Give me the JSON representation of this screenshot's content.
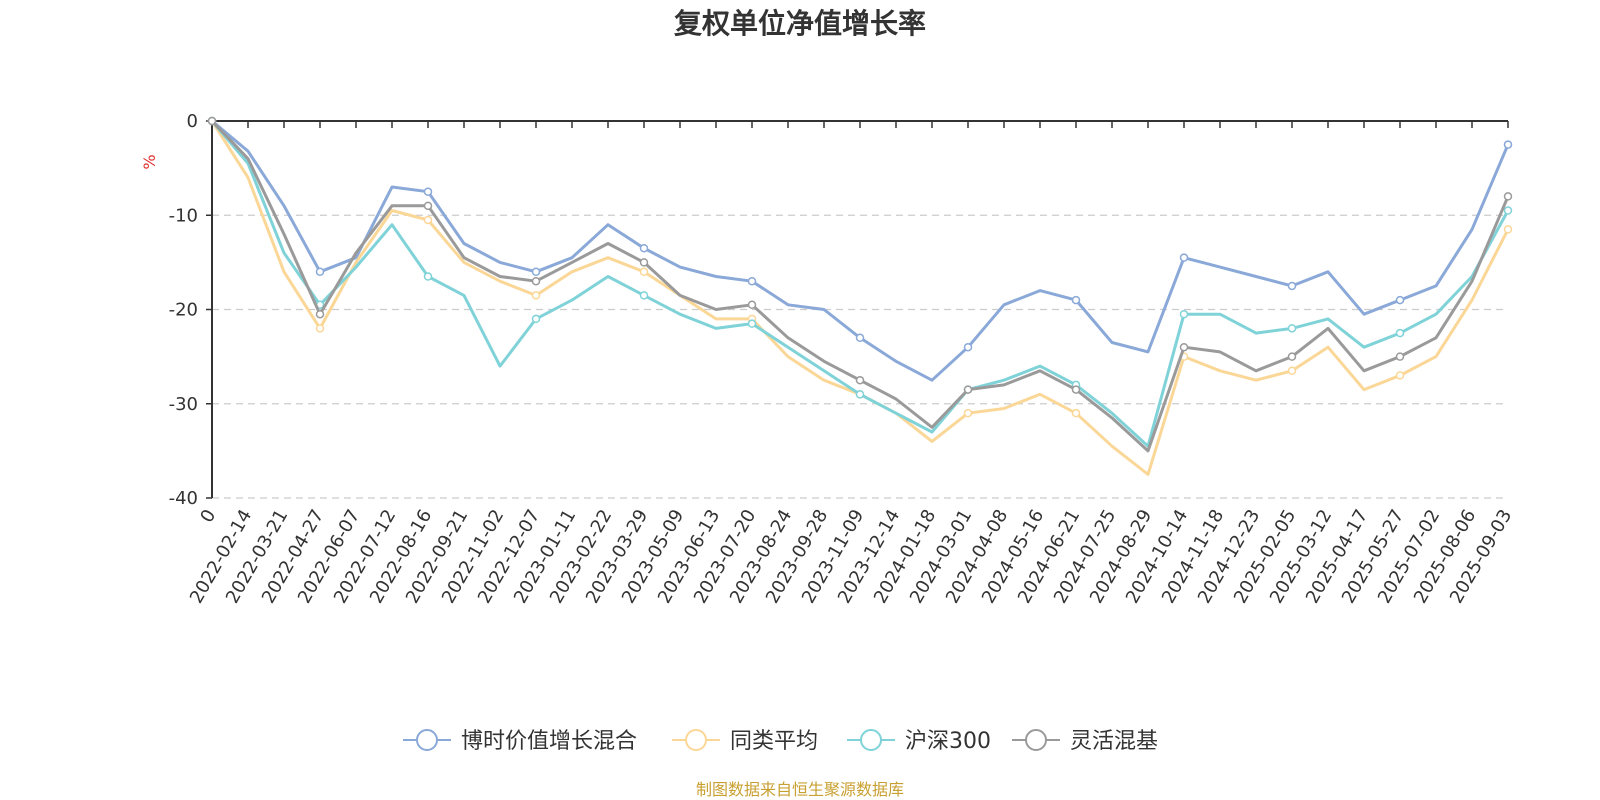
{
  "chart_data": {
    "type": "line",
    "title": "复权单位净值增长率",
    "ylabel": "%",
    "ylim": [
      -40,
      0
    ],
    "yticks": [
      0,
      -10,
      -20,
      -30,
      -40
    ],
    "grid": "horizontal dashed",
    "legend_position": "bottom-center",
    "x_start_label": "0",
    "categories": [
      "2022-02-14",
      "2022-03-21",
      "2022-04-27",
      "2022-06-07",
      "2022-07-12",
      "2022-08-16",
      "2022-09-21",
      "2022-11-02",
      "2022-12-07",
      "2023-01-11",
      "2023-02-22",
      "2023-03-29",
      "2023-05-09",
      "2023-06-13",
      "2023-07-20",
      "2023-08-24",
      "2023-09-28",
      "2023-11-09",
      "2023-12-14",
      "2024-01-18",
      "2024-03-01",
      "2024-04-08",
      "2024-05-16",
      "2024-06-21",
      "2024-07-25",
      "2024-08-29",
      "2024-10-14",
      "2024-11-18",
      "2024-12-23",
      "2025-02-05",
      "2025-03-12",
      "2025-04-17",
      "2025-05-27",
      "2025-07-02",
      "2025-08-06",
      "2025-09-03"
    ],
    "series": [
      {
        "name": "博时价值增长混合",
        "color": "#8aa8d8",
        "values": [
          -3.2,
          -9.0,
          -16.0,
          -14.5,
          -7.0,
          -7.5,
          -13.0,
          -15.0,
          -16.0,
          -14.5,
          -11.0,
          -13.5,
          -15.5,
          -16.5,
          -17.0,
          -19.5,
          -20.0,
          -23.0,
          -25.5,
          -27.5,
          -24.0,
          -19.5,
          -18.0,
          -19.0,
          -23.5,
          -24.5,
          -14.5,
          -15.5,
          -16.5,
          -17.5,
          -16.0,
          -20.5,
          -19.0,
          -17.5,
          -11.5,
          -2.5
        ]
      },
      {
        "name": "同类平均",
        "color": "#fbd797",
        "values": [
          -6.0,
          -16.0,
          -22.0,
          -15.0,
          -9.5,
          -10.5,
          -15.0,
          -17.0,
          -18.5,
          -16.0,
          -14.5,
          -16.0,
          -18.5,
          -21.0,
          -21.0,
          -25.0,
          -27.5,
          -29.0,
          -31.0,
          -34.0,
          -31.0,
          -30.5,
          -29.0,
          -31.0,
          -34.5,
          -37.5,
          -25.0,
          -26.5,
          -27.5,
          -26.5,
          -24.0,
          -28.5,
          -27.0,
          -25.0,
          -19.0,
          -11.5
        ]
      },
      {
        "name": "沪深300",
        "color": "#7fd3d8",
        "values": [
          -4.5,
          -14.0,
          -19.5,
          -15.5,
          -11.0,
          -16.5,
          -18.5,
          -26.0,
          -21.0,
          -19.0,
          -16.5,
          -18.5,
          -20.5,
          -22.0,
          -21.5,
          -24.0,
          -26.5,
          -29.0,
          -31.0,
          -33.0,
          -28.5,
          -27.5,
          -26.0,
          -28.0,
          -31.0,
          -34.5,
          -20.5,
          -20.5,
          -22.5,
          -22.0,
          -21.0,
          -24.0,
          -22.5,
          -20.5,
          -16.5,
          -9.5
        ]
      },
      {
        "name": "灵活混基",
        "color": "#9a9a9a",
        "values": [
          -4.0,
          -12.0,
          -20.5,
          -14.0,
          -9.0,
          -9.0,
          -14.5,
          -16.5,
          -17.0,
          -15.0,
          -13.0,
          -15.0,
          -18.5,
          -20.0,
          -19.5,
          -23.0,
          -25.5,
          -27.5,
          -29.5,
          -32.5,
          -28.5,
          -28.0,
          -26.5,
          -28.5,
          -31.5,
          -35.0,
          -24.0,
          -24.5,
          -26.5,
          -25.0,
          -22.0,
          -26.5,
          -25.0,
          -23.0,
          -17.0,
          -8.0
        ]
      }
    ]
  },
  "source_note": "制图数据来自恒生聚源数据库"
}
